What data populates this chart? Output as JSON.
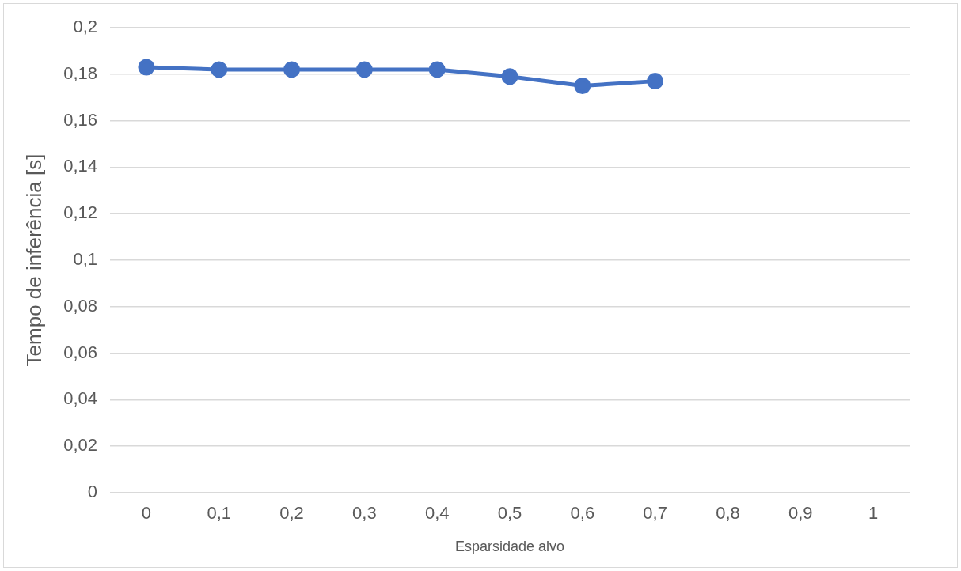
{
  "chart_data": {
    "type": "line",
    "xlabel": "Esparsidade alvo",
    "ylabel": "Tempo de inferência [s]",
    "categories": [
      "0",
      "0,1",
      "0,2",
      "0,3",
      "0,4",
      "0,5",
      "0,6",
      "0,7",
      "0,8",
      "0,9",
      "1"
    ],
    "series": [
      {
        "color": "#4472c4",
        "values": [
          0.183,
          0.182,
          0.182,
          0.182,
          0.182,
          0.179,
          0.175,
          0.177,
          null,
          null,
          null
        ]
      }
    ],
    "ylim": [
      0,
      0.2
    ],
    "yticks": [
      0,
      {
        "value": 0.02,
        "label": "0,02"
      },
      {
        "value": 0.04,
        "label": "0,04"
      },
      {
        "value": 0.06,
        "label": "0,06"
      },
      {
        "value": 0.08,
        "label": "0,08"
      },
      {
        "value": 0.1,
        "label": "0,1"
      },
      {
        "value": 0.12,
        "label": "0,12"
      },
      {
        "value": 0.14,
        "label": "0,14"
      },
      {
        "value": 0.16,
        "label": "0,16"
      },
      {
        "value": 0.18,
        "label": "0,18"
      },
      {
        "value": 0.2,
        "label": "0,2"
      }
    ],
    "grid": "y",
    "legend": false,
    "marker": "circle",
    "line_style": "solid"
  }
}
